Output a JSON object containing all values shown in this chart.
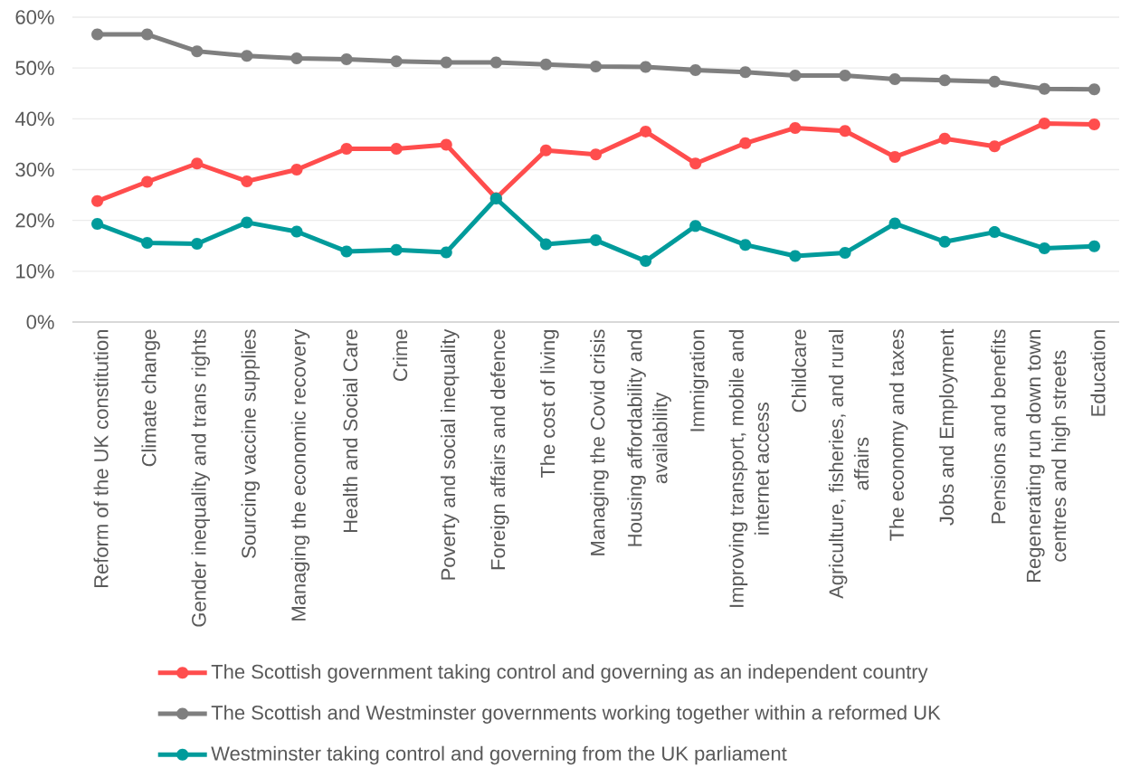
{
  "chart_data": {
    "type": "line",
    "categories": [
      "Reform of the UK constitution",
      "Climate change",
      "Gender inequality and trans rights",
      "Sourcing vaccine supplies",
      "Managing the economic recovery",
      "Health and Social Care",
      "Crime",
      "Poverty and social inequality",
      "Foreign affairs and defence",
      "The cost of living",
      "Managing the Covid crisis",
      "Housing affordability and availability",
      "Immigration",
      "Improving transport, mobile and internet access",
      "Childcare",
      "Agriculture, fisheries, and rural affairs",
      "The economy and taxes",
      "Jobs and Employment",
      "Pensions and benefits",
      "Regenerating run down town centres and high streets",
      "Education"
    ],
    "series": [
      {
        "name": "The Scottish government taking control and governing as an independent country",
        "color": "#ff4d4d",
        "values": [
          23.8,
          27.6,
          31.2,
          27.7,
          30.0,
          34.1,
          34.1,
          34.9,
          24.4,
          33.8,
          33.0,
          37.5,
          31.2,
          35.2,
          38.2,
          37.6,
          32.5,
          36.1,
          34.6,
          39.1,
          38.9
        ]
      },
      {
        "name": "The Scottish and Westminster governments working together within a reformed UK",
        "color": "#7f7f7f",
        "values": [
          56.6,
          56.6,
          53.3,
          52.4,
          51.9,
          51.7,
          51.3,
          51.1,
          51.1,
          50.7,
          50.3,
          50.2,
          49.6,
          49.2,
          48.5,
          48.5,
          47.8,
          47.6,
          47.3,
          45.9,
          45.8
        ]
      },
      {
        "name": "Westminster taking control and governing from the UK parliament",
        "color": "#009b9b",
        "values": [
          19.3,
          15.6,
          15.4,
          19.6,
          17.8,
          13.9,
          14.2,
          13.7,
          24.3,
          15.3,
          16.1,
          12.0,
          18.9,
          15.2,
          13.0,
          13.6,
          19.4,
          15.8,
          17.7,
          14.5,
          14.9
        ]
      }
    ],
    "ylim": [
      0,
      60
    ],
    "yticks": [
      {
        "value": 0,
        "label": "0%"
      },
      {
        "value": 10,
        "label": "10%"
      },
      {
        "value": 20,
        "label": "20%"
      },
      {
        "value": 30,
        "label": "30%"
      },
      {
        "value": 40,
        "label": "40%"
      },
      {
        "value": 50,
        "label": "50%"
      },
      {
        "value": 60,
        "label": "60%"
      }
    ],
    "grid": "y",
    "legend": "bottom",
    "marker": "circle",
    "line_style": "solid"
  }
}
